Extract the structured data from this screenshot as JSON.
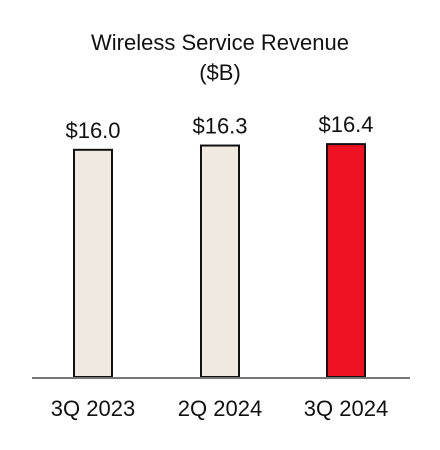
{
  "chart_data": {
    "type": "bar",
    "title": "Wireless Service Revenue",
    "subtitle": "($B)",
    "categories": [
      "3Q 2023",
      "2Q 2024",
      "3Q 2024"
    ],
    "values": [
      16.0,
      16.3,
      16.4
    ],
    "data_labels": [
      "$16.0",
      "$16.3",
      "$16.4"
    ],
    "bar_colors": [
      "#efe9df",
      "#efe9df",
      "#ee1122"
    ],
    "bar_stroke": "#111111",
    "axis_color": "#777777",
    "grid": false,
    "legend": "none"
  }
}
